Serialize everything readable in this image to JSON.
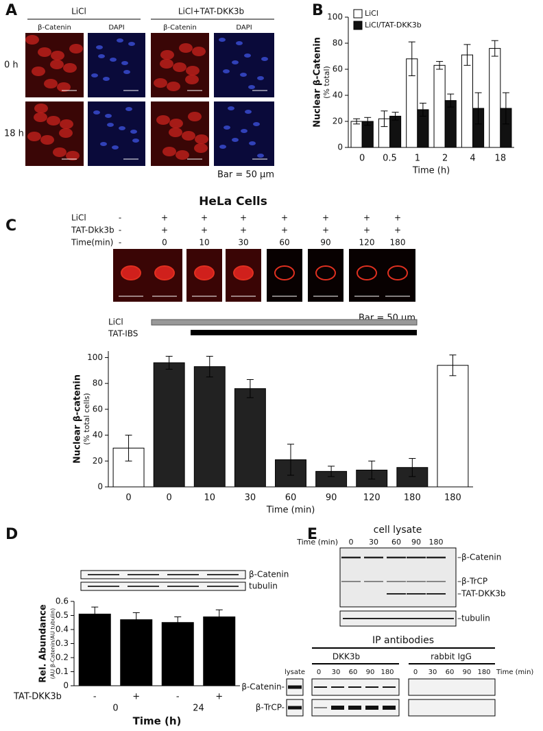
{
  "panels": [
    "A",
    "B",
    "C",
    "D",
    "E"
  ],
  "panel_a": {
    "groups": [
      "LiCl",
      "LiCl+TAT-DKK3b"
    ],
    "stains": [
      "β-Catenin",
      "DAPI",
      "β-Catenin",
      "DAPI"
    ],
    "rows": [
      "0 h",
      "18 h"
    ],
    "scale": "Bar = 50 μm"
  },
  "chart_data": [
    {
      "type": "bar",
      "y_label": "Nuclear β-Catenin",
      "y_label_sub": "(% total)",
      "x_label": "Time (h)",
      "categories": [
        "0",
        "0.5",
        "1",
        "2",
        "4",
        "18"
      ],
      "series": [
        {
          "name": "LiCl",
          "color": "#ffffff",
          "values": [
            20,
            22,
            68,
            63,
            71,
            76
          ],
          "errors": [
            2,
            6,
            13,
            3,
            8,
            6
          ]
        },
        {
          "name": "LiCl/TAT-DKK3b",
          "color": "#111111",
          "values": [
            20,
            24,
            29,
            36,
            30,
            30
          ],
          "errors": [
            3,
            3,
            5,
            5,
            12,
            12
          ]
        }
      ],
      "ylim": [
        0,
        100
      ],
      "yticks": [
        0,
        20,
        40,
        60,
        80,
        100
      ],
      "legend": "upper-left"
    },
    {
      "type": "bar",
      "title": "HeLa Cells",
      "y_label": "Nuclear β-catenin",
      "y_label_sub": "(% total cells)",
      "x_label": "Time (min)",
      "categories": [
        "0",
        "0",
        "10",
        "30",
        "60",
        "90",
        "120",
        "180",
        "180"
      ],
      "values": [
        30,
        96,
        93,
        76,
        21,
        12,
        13,
        15,
        94
      ],
      "errors": [
        10,
        5,
        8,
        7,
        12,
        4,
        7,
        7,
        8
      ],
      "colors": [
        "#ffffff",
        "#222222",
        "#222222",
        "#222222",
        "#222222",
        "#222222",
        "#222222",
        "#222222",
        "#ffffff"
      ],
      "ylim": [
        0,
        105
      ],
      "yticks": [
        0,
        20,
        40,
        60,
        80,
        100
      ]
    },
    {
      "type": "bar",
      "y_label": "Rel. Abundance",
      "y_label_sub": "(AU β-Catenin/AU tubulin)",
      "x_label": "Time (h)",
      "x_row_label": "TAT-DKK3b",
      "categories": [
        "-",
        "+",
        "-",
        "+"
      ],
      "groups": [
        "0",
        "24"
      ],
      "values": [
        0.51,
        0.47,
        0.45,
        0.49
      ],
      "errors": [
        0.05,
        0.05,
        0.04,
        0.05
      ],
      "color": "#000000",
      "ylim": [
        0,
        0.6
      ],
      "yticks": [
        0,
        0.1,
        0.2,
        0.3,
        0.4,
        0.5,
        0.6
      ]
    }
  ],
  "panel_c": {
    "rows": [
      {
        "name": "LiCl",
        "values": [
          "-",
          "+",
          "+",
          "+",
          "+",
          "+",
          "+",
          "+"
        ]
      },
      {
        "name": "TAT-Dkk3b",
        "values": [
          "-",
          "+",
          "+",
          "+",
          "+",
          "+",
          "+",
          "+"
        ]
      },
      {
        "name": "Time(min)",
        "values": [
          "-",
          "0",
          "10",
          "30",
          "60",
          "90",
          "120",
          "180"
        ]
      }
    ],
    "scale": "Bar = 50 μm",
    "treatments": [
      "LiCl",
      "TAT-IBS"
    ]
  },
  "panel_d": {
    "blots": [
      "β-Catenin",
      "tubulin"
    ]
  },
  "panel_e": {
    "title": "cell lysate",
    "time_label": "Time (min)",
    "times": [
      "0",
      "30",
      "60",
      "90",
      "180"
    ],
    "bands": [
      "–β-Catenin",
      "–β-TrCP",
      "–TAT-DKK3b",
      "–tubulin"
    ],
    "ip_title": "IP antibodies",
    "ip_groups": [
      "DKK3b",
      "rabbit IgG"
    ],
    "ip_times": [
      [
        "0",
        "30",
        "60",
        "90",
        "180"
      ],
      [
        "0",
        "30",
        "60",
        "90",
        "180"
      ]
    ],
    "ip_time_label": "Time (min)",
    "lysate": "lysate",
    "ip_rows": [
      "β-Catenin-",
      "β-TrCP-"
    ]
  }
}
